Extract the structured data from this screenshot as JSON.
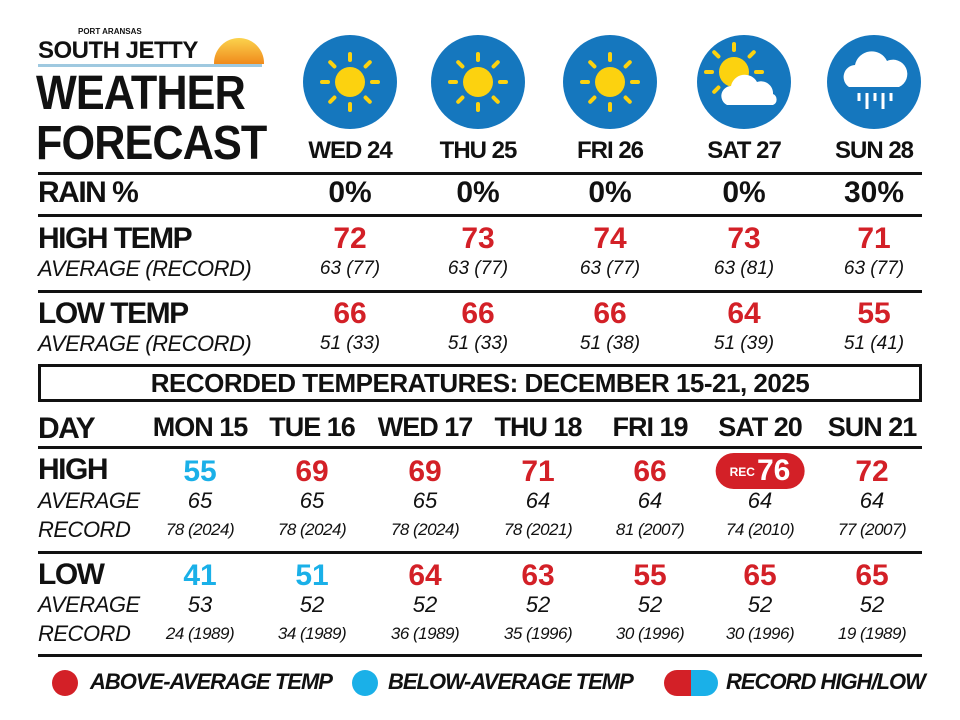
{
  "header": {
    "logo_small": "PORT ARANSAS",
    "logo": "SOUTH JETTY",
    "title1": "WEATHER",
    "title2": "FORECAST"
  },
  "colors": {
    "above": "#d32027",
    "below": "#1ab0e8",
    "icon_bg": "#1577be"
  },
  "forecast": {
    "rain_label": "RAIN %",
    "high_label": "HIGH TEMP",
    "low_label": "LOW TEMP",
    "avg_label": "AVERAGE (RECORD)",
    "days": [
      {
        "day": "WED 24",
        "icon": "sun-icon",
        "rain": "0%",
        "high": "72",
        "high_avg": "63 (77)",
        "low": "66",
        "low_avg": "51 (33)"
      },
      {
        "day": "THU 25",
        "icon": "sun-icon",
        "rain": "0%",
        "high": "73",
        "high_avg": "63 (77)",
        "low": "66",
        "low_avg": "51 (33)"
      },
      {
        "day": "FRI 26",
        "icon": "sun-icon",
        "rain": "0%",
        "high": "74",
        "high_avg": "63 (77)",
        "low": "66",
        "low_avg": "51 (38)"
      },
      {
        "day": "SAT 27",
        "icon": "partly-cloudy-icon",
        "rain": "0%",
        "high": "73",
        "high_avg": "63 (81)",
        "low": "64",
        "low_avg": "51 (39)"
      },
      {
        "day": "SUN 28",
        "icon": "rain-cloud-icon",
        "rain": "30%",
        "high": "71",
        "high_avg": "63 (77)",
        "low": "55",
        "low_avg": "51 (41)"
      }
    ]
  },
  "recorded": {
    "banner": "RECORDED TEMPERATURES: DECEMBER 15-21, 2025",
    "day_label": "DAY",
    "high_label": "HIGH",
    "low_label": "LOW",
    "avg_label": "AVERAGE",
    "record_label": "RECORD",
    "rec_tag": "REC",
    "days": [
      {
        "day": "MON 15",
        "high": "55",
        "high_status": "below",
        "high_avg": "65",
        "high_rec": "78 (2024)",
        "low": "41",
        "low_status": "below",
        "low_avg": "53",
        "low_rec": "24 (1989)"
      },
      {
        "day": "TUE 16",
        "high": "69",
        "high_status": "above",
        "high_avg": "65",
        "high_rec": "78 (2024)",
        "low": "51",
        "low_status": "below",
        "low_avg": "52",
        "low_rec": "34 (1989)"
      },
      {
        "day": "WED 17",
        "high": "69",
        "high_status": "above",
        "high_avg": "65",
        "high_rec": "78 (2024)",
        "low": "64",
        "low_status": "above",
        "low_avg": "52",
        "low_rec": "36 (1989)"
      },
      {
        "day": "THU 18",
        "high": "71",
        "high_status": "above",
        "high_avg": "64",
        "high_rec": "78 (2021)",
        "low": "63",
        "low_status": "above",
        "low_avg": "52",
        "low_rec": "35 (1996)"
      },
      {
        "day": "FRI 19",
        "high": "66",
        "high_status": "above",
        "high_avg": "64",
        "high_rec": "81 (2007)",
        "low": "55",
        "low_status": "above",
        "low_avg": "52",
        "low_rec": "30 (1996)"
      },
      {
        "day": "SAT 20",
        "high": "76",
        "high_status": "record",
        "high_avg": "64",
        "high_rec": "74 (2010)",
        "low": "65",
        "low_status": "above",
        "low_avg": "52",
        "low_rec": "30 (1996)"
      },
      {
        "day": "SUN 21",
        "high": "72",
        "high_status": "above",
        "high_avg": "64",
        "high_rec": "77 (2007)",
        "low": "65",
        "low_status": "above",
        "low_avg": "52",
        "low_rec": "19 (1989)"
      }
    ]
  },
  "legend": {
    "above": "ABOVE-AVERAGE TEMP",
    "below": "BELOW-AVERAGE TEMP",
    "record": "RECORD HIGH/LOW"
  }
}
